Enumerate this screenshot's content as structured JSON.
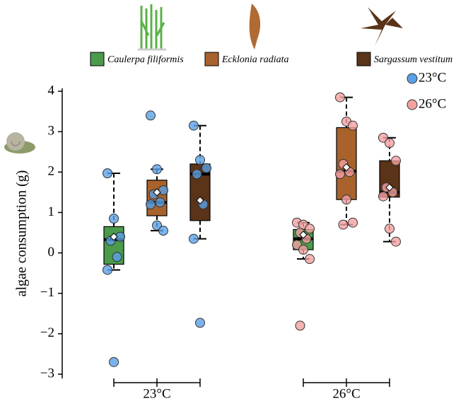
{
  "chart_data": {
    "type": "box",
    "y_label": "algae consumption (g)",
    "ylim": [
      -3,
      4
    ],
    "yticks": [
      {
        "value": -3,
        "label": "−3"
      },
      {
        "value": -2,
        "label": "−2"
      },
      {
        "value": -1,
        "label": "−1"
      },
      0,
      1,
      2,
      3,
      4
    ],
    "groups": [
      "23°C",
      "26°C"
    ],
    "group_colors": [
      "#5aa0e6",
      "#f2a0a0"
    ],
    "series": [
      {
        "name": "Caulerpa filiformis",
        "color": "#4c9a4c",
        "boxes": [
          {
            "min": -0.42,
            "q1": -0.28,
            "median": 0.33,
            "q3": 0.65,
            "max": 1.97,
            "mean": 0.4,
            "points": [
              1.97,
              0.85,
              0.4,
              0.3,
              -0.1,
              -0.42,
              -2.7
            ]
          },
          {
            "min": -0.15,
            "q1": 0.08,
            "median": 0.35,
            "q3": 0.58,
            "max": 0.75,
            "mean": 0.45,
            "points": [
              0.75,
              0.7,
              0.6,
              0.5,
              0.35,
              0.2,
              0.08,
              -0.15,
              -1.8
            ]
          }
        ]
      },
      {
        "name": "Ecklonia radiata",
        "color": "#a8622c",
        "boxes": [
          {
            "min": 0.55,
            "q1": 0.92,
            "median": 1.25,
            "q3": 1.8,
            "max": 2.07,
            "mean": 1.5,
            "points": [
              3.4,
              2.07,
              1.55,
              1.45,
              1.25,
              1.2,
              0.68,
              0.55
            ]
          },
          {
            "min": 0.7,
            "q1": 1.32,
            "median": 2.02,
            "q3": 3.1,
            "max": 3.85,
            "mean": 2.12,
            "points": [
              3.85,
              3.25,
              3.15,
              2.2,
              2.0,
              1.95,
              1.32,
              0.75,
              0.7
            ]
          }
        ]
      },
      {
        "name": "Sargassum vestitum",
        "color": "#5a3318",
        "boxes": [
          {
            "min": 0.35,
            "q1": 0.8,
            "median": 1.95,
            "q3": 2.2,
            "max": 3.15,
            "mean": 1.3,
            "points": [
              3.15,
              2.3,
              2.1,
              1.95,
              1.2,
              0.35,
              -1.73
            ]
          },
          {
            "min": 0.28,
            "q1": 1.38,
            "median": 1.5,
            "q3": 2.28,
            "max": 2.85,
            "mean": 1.62,
            "points": [
              2.85,
              2.72,
              2.28,
              1.62,
              1.5,
              1.4,
              0.6,
              0.28
            ]
          }
        ]
      }
    ]
  }
}
